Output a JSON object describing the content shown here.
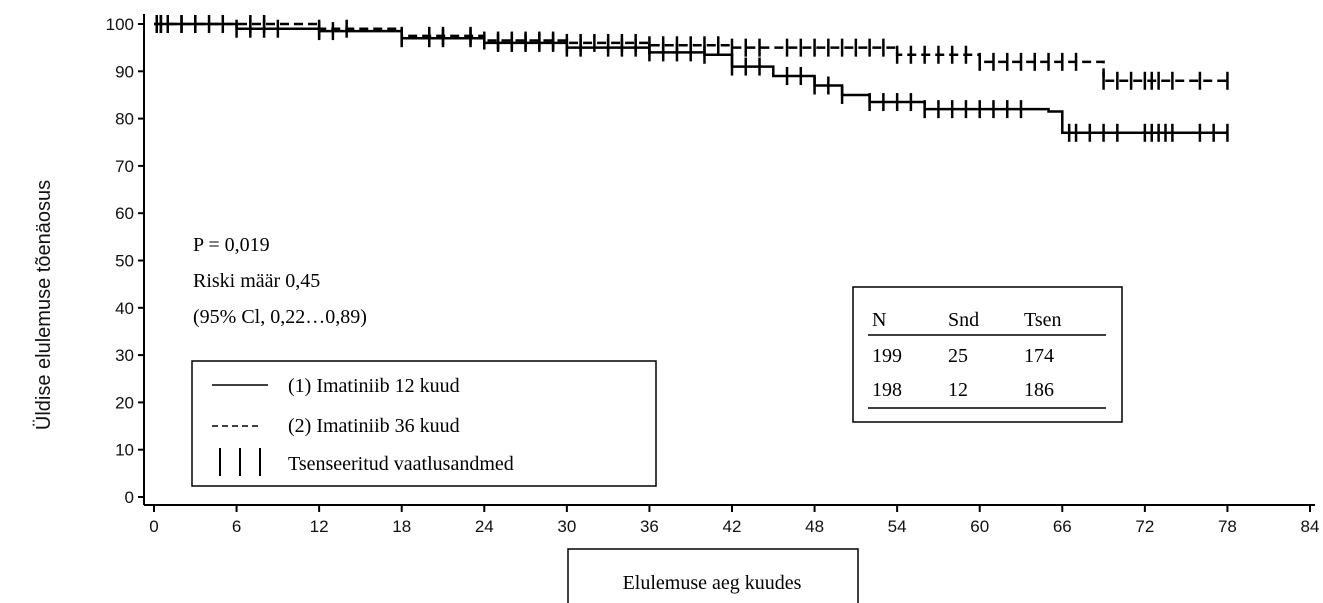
{
  "chart_data": {
    "type": "line",
    "xlabel": "Elulemuse aeg kuudes",
    "ylabel": "Üldise elulemuse tõenäosus",
    "xlim": [
      0,
      84
    ],
    "ylim": [
      0,
      100
    ],
    "xticks": [
      0,
      6,
      12,
      18,
      24,
      30,
      36,
      42,
      48,
      54,
      60,
      66,
      72,
      78,
      84
    ],
    "yticks": [
      0,
      10,
      20,
      30,
      40,
      50,
      60,
      70,
      80,
      90,
      100
    ],
    "grid": false,
    "series": [
      {
        "name": "(1) Imatiniib 12 kuud",
        "style": "solid",
        "x": [
          0,
          6,
          12,
          18,
          24,
          30,
          36,
          40,
          42,
          45,
          48,
          50,
          52,
          56,
          60,
          65,
          66,
          78
        ],
        "y": [
          100,
          99,
          98.5,
          97,
          96,
          95,
          94,
          93.5,
          91,
          89,
          87,
          85,
          83.5,
          82,
          82,
          81.5,
          77,
          77
        ],
        "censored_x": [
          0.2,
          0.5,
          1,
          2,
          3,
          4,
          6,
          7,
          8,
          9,
          12,
          13,
          18,
          20,
          21,
          23,
          25,
          26,
          27,
          28,
          29,
          30,
          31,
          33,
          34,
          35,
          36,
          37,
          38,
          39,
          40,
          42,
          43,
          44,
          46,
          47,
          48,
          49,
          50,
          52,
          53,
          54,
          55,
          56,
          57,
          58,
          59,
          60,
          61,
          62,
          63,
          66.5,
          67,
          68,
          69,
          70,
          72,
          72.5,
          73,
          73.5,
          74,
          76,
          77,
          78
        ]
      },
      {
        "name": "(2) Imatiniib 36 kuud",
        "style": "dashed",
        "x": [
          0,
          12,
          18,
          24,
          30,
          36,
          42,
          48,
          54,
          60,
          68,
          69,
          78
        ],
        "y": [
          100,
          99,
          97.5,
          96.5,
          96,
          95.5,
          95,
          95,
          93.5,
          92,
          92,
          88,
          88
        ],
        "censored_x": [
          0.2,
          0.5,
          1,
          2,
          3,
          5,
          7,
          8,
          12,
          14,
          18,
          20,
          21,
          23,
          24,
          25,
          26,
          27,
          28,
          29,
          30,
          31,
          32,
          33,
          34,
          35,
          36,
          37,
          38,
          39,
          40,
          41,
          42,
          43,
          44,
          46,
          47,
          48,
          49,
          50,
          51,
          52,
          53,
          54,
          55,
          56,
          57,
          58,
          59,
          60,
          61,
          62,
          63,
          64,
          65,
          66,
          67,
          69,
          70,
          71,
          72,
          72.5,
          73,
          74,
          76,
          78
        ]
      }
    ]
  },
  "stats": {
    "p_value": "P = 0,019",
    "hazard_ratio": "Riski määr 0,45",
    "ci": "(95% Cl, 0,22…0,89)"
  },
  "legend": {
    "line1_symbol": "——",
    "line1_label": "(1) Imatiniib 12 kuud",
    "line2_symbol": "-----",
    "line2_label": "(2) Imatiniib 36 kuud",
    "line3_label": "Tsenseeritud vaatlusandmed"
  },
  "table": {
    "headers": [
      "N",
      "Snd",
      "Tsen"
    ],
    "rows": [
      [
        "199",
        "25",
        "174"
      ],
      [
        "198",
        "12",
        "186"
      ]
    ]
  }
}
